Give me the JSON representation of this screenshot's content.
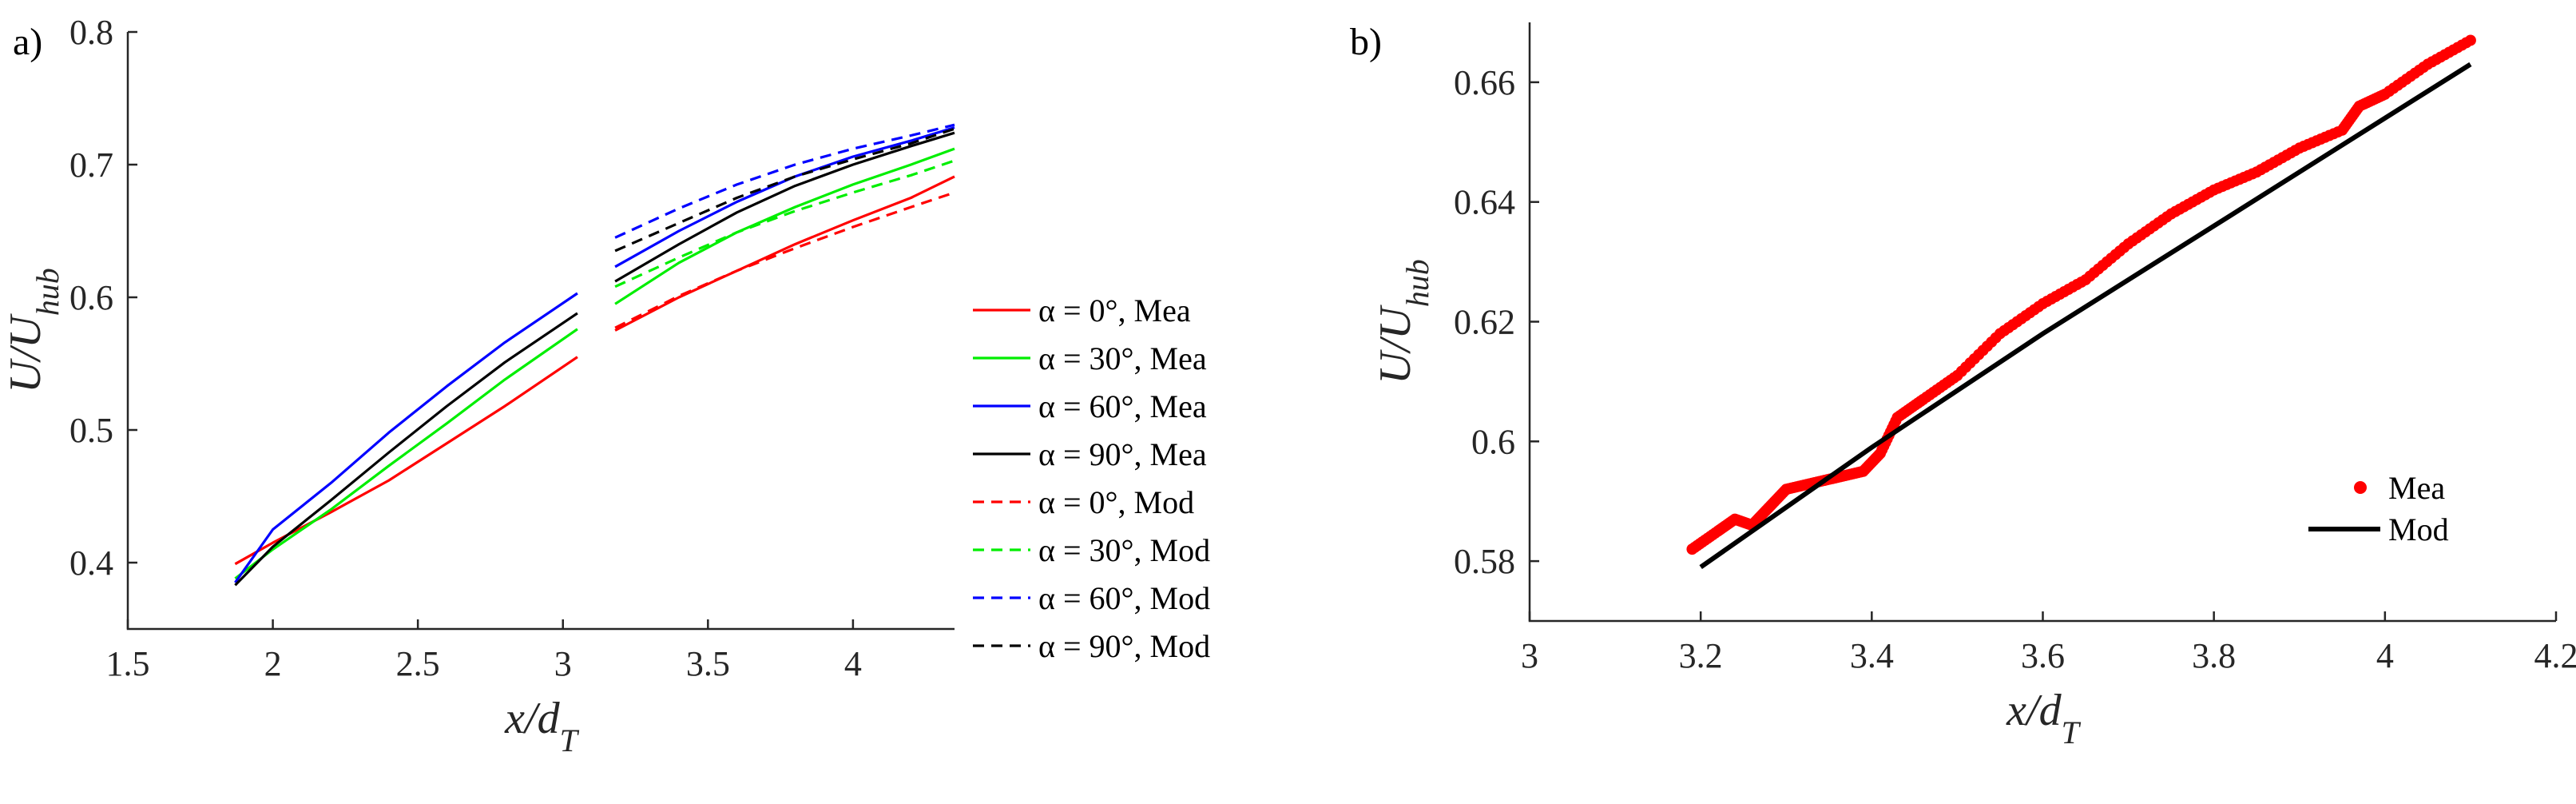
{
  "chart_data": [
    {
      "panel_label": "a)",
      "type": "line",
      "xlabel": "x/d_T",
      "ylabel": "U/U_hub",
      "xlim": [
        1.5,
        4.35
      ],
      "ylim": [
        0.35,
        0.8
      ],
      "x_ticks": [
        "1.5",
        "2",
        "2.5",
        "3",
        "3.5",
        "4"
      ],
      "y_ticks": [
        "0.4",
        "0.5",
        "0.6",
        "0.7",
        "0.8"
      ],
      "grid": false,
      "legend_position": "right",
      "series": [
        {
          "name": "α = 0°, Mea",
          "color": "#ff0000",
          "style": "solid",
          "segments": [
            {
              "x": [
                1.87,
                2.0,
                2.2,
                2.4,
                2.6,
                2.8,
                3.05
              ],
              "y": [
                0.399,
                0.415,
                0.438,
                0.462,
                0.49,
                0.518,
                0.555
              ]
            },
            {
              "x": [
                3.18,
                3.4,
                3.6,
                3.8,
                4.0,
                4.2,
                4.35
              ],
              "y": [
                0.575,
                0.6,
                0.62,
                0.64,
                0.658,
                0.675,
                0.691
              ]
            }
          ]
        },
        {
          "name": "α = 30°, Mea",
          "color": "#00ee00",
          "style": "solid",
          "segments": [
            {
              "x": [
                1.87,
                2.0,
                2.2,
                2.4,
                2.6,
                2.8,
                3.05
              ],
              "y": [
                0.388,
                0.41,
                0.44,
                0.473,
                0.505,
                0.538,
                0.576
              ]
            },
            {
              "x": [
                3.18,
                3.4,
                3.6,
                3.8,
                4.0,
                4.2,
                4.35
              ],
              "y": [
                0.595,
                0.626,
                0.649,
                0.668,
                0.685,
                0.7,
                0.712
              ]
            }
          ]
        },
        {
          "name": "α = 60°, Mea",
          "color": "#0000ff",
          "style": "solid",
          "segments": [
            {
              "x": [
                1.87,
                2.0,
                2.2,
                2.4,
                2.6,
                2.8,
                3.05
              ],
              "y": [
                0.385,
                0.425,
                0.46,
                0.498,
                0.533,
                0.566,
                0.603
              ]
            },
            {
              "x": [
                3.18,
                3.4,
                3.6,
                3.8,
                4.0,
                4.2,
                4.35
              ],
              "y": [
                0.623,
                0.65,
                0.672,
                0.691,
                0.706,
                0.718,
                0.728
              ]
            }
          ]
        },
        {
          "name": "α = 90°, Mea",
          "color": "#000000",
          "style": "solid",
          "segments": [
            {
              "x": [
                1.87,
                2.0,
                2.2,
                2.4,
                2.6,
                2.8,
                3.05
              ],
              "y": [
                0.383,
                0.412,
                0.447,
                0.483,
                0.518,
                0.551,
                0.588
              ]
            },
            {
              "x": [
                3.18,
                3.4,
                3.6,
                3.8,
                4.0,
                4.2,
                4.35
              ],
              "y": [
                0.612,
                0.64,
                0.664,
                0.684,
                0.7,
                0.714,
                0.724
              ]
            }
          ]
        },
        {
          "name": "α = 0°, Mod",
          "color": "#ff0000",
          "style": "dashed",
          "segments": [
            {
              "x": [
                3.18,
                3.4,
                3.6,
                3.8,
                4.0,
                4.2,
                4.35
              ],
              "y": [
                0.577,
                0.601,
                0.62,
                0.637,
                0.653,
                0.668,
                0.679
              ]
            }
          ]
        },
        {
          "name": "α = 30°, Mod",
          "color": "#00ee00",
          "style": "dashed",
          "segments": [
            {
              "x": [
                3.18,
                3.4,
                3.6,
                3.8,
                4.0,
                4.2,
                4.35
              ],
              "y": [
                0.608,
                0.63,
                0.649,
                0.665,
                0.679,
                0.692,
                0.703
              ]
            }
          ]
        },
        {
          "name": "α = 60°, Mod",
          "color": "#0000ff",
          "style": "dashed",
          "segments": [
            {
              "x": [
                3.18,
                3.4,
                3.6,
                3.8,
                4.0,
                4.2,
                4.35
              ],
              "y": [
                0.645,
                0.667,
                0.685,
                0.7,
                0.712,
                0.722,
                0.73
              ]
            }
          ]
        },
        {
          "name": "α = 90°, Mod",
          "color": "#000000",
          "style": "dashed",
          "segments": [
            {
              "x": [
                3.18,
                3.4,
                3.6,
                3.8,
                4.0,
                4.2,
                4.35
              ],
              "y": [
                0.635,
                0.656,
                0.675,
                0.691,
                0.704,
                0.716,
                0.727
              ]
            }
          ]
        }
      ]
    },
    {
      "panel_label": "b)",
      "type": "scatter",
      "xlabel": "x/d_T",
      "ylabel": "U/U_hub",
      "xlim": [
        3.0,
        4.2
      ],
      "ylim": [
        0.57,
        0.67
      ],
      "x_ticks": [
        "3",
        "3.2",
        "3.4",
        "3.6",
        "3.8",
        "4",
        "4.2"
      ],
      "y_ticks": [
        "0.58",
        "0.6",
        "0.62",
        "0.64",
        "0.66"
      ],
      "grid": false,
      "legend_position": "bottom-right",
      "series": [
        {
          "name": "Mea",
          "color": "#ff0000",
          "kind": "markers",
          "x": [
            3.19,
            3.22,
            3.24,
            3.26,
            3.28,
            3.3,
            3.33,
            3.36,
            3.39,
            3.41,
            3.43,
            3.46,
            3.5,
            3.55,
            3.6,
            3.65,
            3.7,
            3.75,
            3.8,
            3.85,
            3.9,
            3.95,
            3.97,
            4.0,
            4.05,
            4.1
          ],
          "y": [
            0.582,
            0.585,
            0.587,
            0.586,
            0.589,
            0.592,
            0.593,
            0.594,
            0.595,
            0.598,
            0.604,
            0.607,
            0.611,
            0.618,
            0.623,
            0.627,
            0.633,
            0.638,
            0.642,
            0.645,
            0.649,
            0.652,
            0.656,
            0.658,
            0.663,
            0.667
          ]
        },
        {
          "name": "Mod",
          "color": "#000000",
          "kind": "line",
          "x": [
            3.2,
            3.4,
            3.6,
            3.8,
            4.0,
            4.1
          ],
          "y": [
            0.579,
            0.599,
            0.618,
            0.636,
            0.654,
            0.663
          ]
        }
      ]
    }
  ]
}
